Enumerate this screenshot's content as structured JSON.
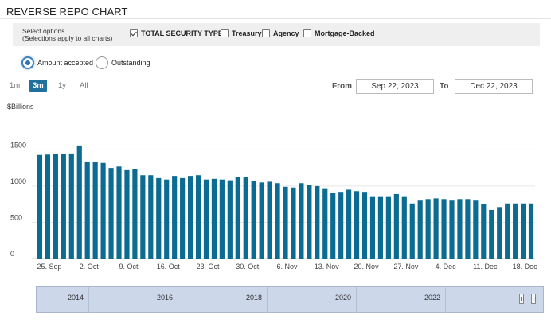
{
  "title": "REVERSE REPO CHART",
  "options": {
    "label_line1": "Select options",
    "label_line2": "(Selections apply to all charts)",
    "checkboxes": [
      {
        "label": "TOTAL SECURITY TYPES",
        "checked": true
      },
      {
        "label": "Treasury",
        "checked": false
      },
      {
        "label": "Agency",
        "checked": false
      },
      {
        "label": "Mortgage-Backed",
        "checked": false
      }
    ]
  },
  "radios": [
    {
      "label": "Amount accepted",
      "selected": true
    },
    {
      "label": "Outstanding",
      "selected": false
    }
  ],
  "zoom": {
    "buttons": [
      "1m",
      "3m",
      "1y",
      "All"
    ],
    "active": "3m"
  },
  "range": {
    "from_label": "From",
    "from_value": "Sep 22, 2023",
    "to_label": "To",
    "to_value": "Dec 22, 2023"
  },
  "unit_label": "$Billions",
  "chart_data": {
    "type": "bar",
    "color": "#0b6b91",
    "ylim": [
      0,
      1800
    ],
    "yticks": [
      0,
      500,
      1000,
      1500
    ],
    "grid": true,
    "xtick_labels": [
      "25. Sep",
      "2. Oct",
      "9. Oct",
      "16. Oct",
      "23. Oct",
      "30. Oct",
      "6. Nov",
      "13. Nov",
      "20. Nov",
      "27. Nov",
      "4. Dec",
      "11. Dec",
      "18. Dec"
    ],
    "values": [
      1430,
      1435,
      1440,
      1440,
      1450,
      1560,
      1340,
      1330,
      1320,
      1250,
      1270,
      1220,
      1230,
      1150,
      1150,
      1110,
      1090,
      1140,
      1110,
      1140,
      1150,
      1090,
      1100,
      1090,
      1080,
      1130,
      1130,
      1070,
      1050,
      1060,
      1040,
      990,
      980,
      1040,
      1020,
      1000,
      970,
      910,
      920,
      950,
      930,
      920,
      860,
      860,
      860,
      890,
      860,
      760,
      810,
      820,
      830,
      820,
      810,
      820,
      820,
      810,
      750,
      670,
      710,
      760,
      760,
      760,
      760
    ]
  },
  "navigator": {
    "years": [
      "2014",
      "2016",
      "2018",
      "2020",
      "2022"
    ]
  }
}
